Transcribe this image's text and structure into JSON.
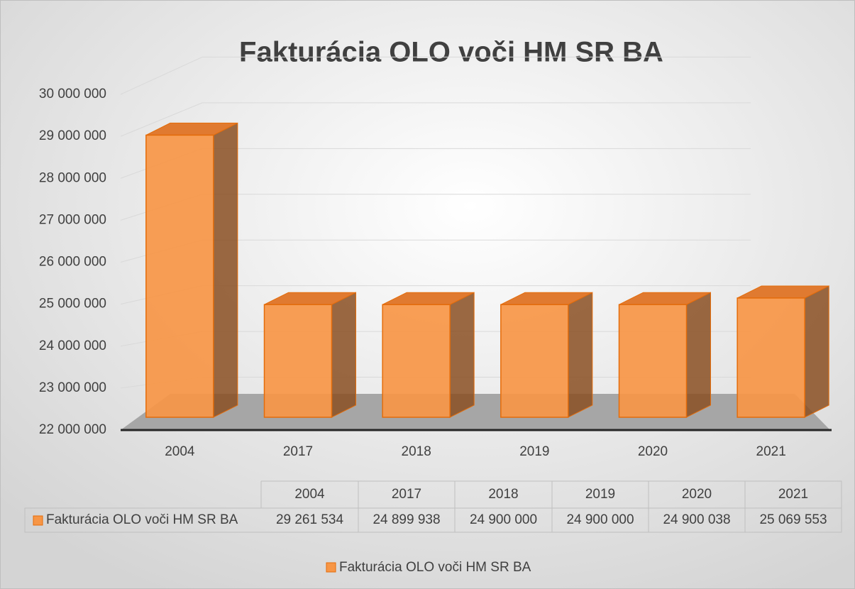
{
  "chart_data": {
    "type": "bar3d",
    "title": "Fakturácia OLO voči HM SR BA",
    "categories": [
      "2004",
      "2017",
      "2018",
      "2019",
      "2020",
      "2021"
    ],
    "series": [
      {
        "name": "Fakturácia OLO voči HM SR BA",
        "color": "#f79646",
        "values": [
          29261534,
          24899938,
          24900000,
          24900000,
          24900038,
          25069553
        ],
        "value_labels": [
          "29 261 534",
          "24 899 938",
          "24 900 000",
          "24 900 000",
          "24 900 038",
          "25 069 553"
        ]
      }
    ],
    "ylim": [
      22000000,
      30000000
    ],
    "yticks": [
      {
        "value": 22000000,
        "label": "22 000 000"
      },
      {
        "value": 23000000,
        "label": "23 000 000"
      },
      {
        "value": 24000000,
        "label": "24 000 000"
      },
      {
        "value": 25000000,
        "label": "25 000 000"
      },
      {
        "value": 26000000,
        "label": "26 000 000"
      },
      {
        "value": 27000000,
        "label": "27 000 000"
      },
      {
        "value": 28000000,
        "label": "28 000 000"
      },
      {
        "value": 29000000,
        "label": "29 000 000"
      },
      {
        "value": 30000000,
        "label": "30 000 000"
      }
    ],
    "grid": true,
    "data_table": true,
    "legend": "bottom"
  }
}
